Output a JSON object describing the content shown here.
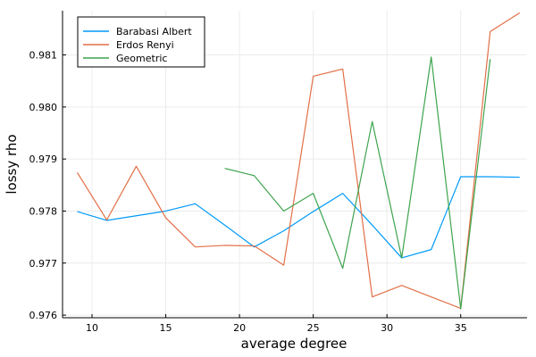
{
  "chart_data": {
    "type": "line",
    "title": "",
    "xlabel": "average degree",
    "ylabel": "lossy rho",
    "xlim": [
      8,
      39.5
    ],
    "ylim": [
      0.97595,
      0.98185
    ],
    "xticks": [
      10,
      15,
      20,
      25,
      30,
      35
    ],
    "yticks": [
      0.976,
      0.977,
      0.978,
      0.979,
      0.98,
      0.981
    ],
    "ytick_labels": [
      "0.976",
      "0.977",
      "0.978",
      "0.979",
      "0.980",
      "0.981"
    ],
    "grid": true,
    "legend_position": "top-left",
    "series": [
      {
        "name": "Barabasi Albert",
        "color": "#009af9",
        "x": [
          9,
          11,
          13,
          15,
          17,
          19,
          21,
          23,
          25,
          27,
          29,
          31,
          33,
          35,
          37,
          39
        ],
        "y": [
          0.97799,
          0.97782,
          0.97791,
          0.978,
          0.97814,
          0.97773,
          0.97731,
          0.97762,
          0.97799,
          0.97834,
          0.97773,
          0.9771,
          0.97726,
          0.97866,
          0.97866,
          0.97865
        ]
      },
      {
        "name": "Erdos Renyi",
        "color": "#e26f46",
        "x": [
          9,
          11,
          13,
          15,
          17,
          19,
          21,
          23,
          25,
          27,
          29,
          31,
          33,
          35,
          37,
          39
        ],
        "y": [
          0.97874,
          0.97783,
          0.97886,
          0.97787,
          0.97731,
          0.97734,
          0.97733,
          0.97696,
          0.98059,
          0.98073,
          0.97635,
          0.97657,
          0.97635,
          0.97613,
          0.98145,
          0.98181
        ]
      },
      {
        "name": "Geometric",
        "color": "#3da44d",
        "x": [
          19,
          21,
          23,
          25,
          27,
          29,
          31,
          33,
          35,
          37
        ],
        "y": [
          0.97882,
          0.97868,
          0.978,
          0.97834,
          0.9769,
          0.97972,
          0.9771,
          0.98096,
          0.97612,
          0.98092
        ]
      }
    ]
  }
}
